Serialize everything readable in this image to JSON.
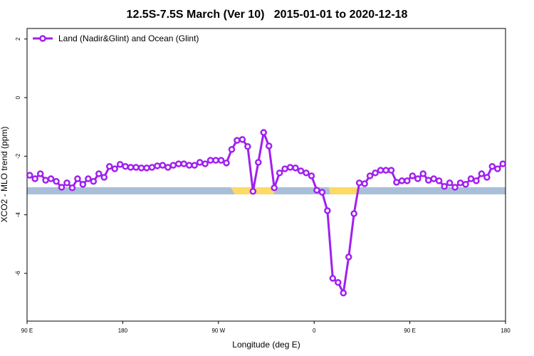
{
  "chart_data": {
    "type": "line",
    "title": "12.5S-7.5S March (Ver 10)   2015-01-01 to 2020-12-18",
    "x_label": "Longitude (deg E)",
    "y_label": "XCO2 - MLO trend (ppm)",
    "xlim": [
      90,
      540
    ],
    "xticks": [
      {
        "value": 90,
        "label": "90 E"
      },
      {
        "value": 180,
        "label": "180"
      },
      {
        "value": 270,
        "label": "90 W"
      },
      {
        "value": 360,
        "label": "0"
      },
      {
        "value": 450,
        "label": "90 E"
      },
      {
        "value": 540,
        "label": "180"
      }
    ],
    "ylim": [
      -7.63,
      2.36
    ],
    "yticks": [
      2,
      0,
      -2,
      -4,
      -6
    ],
    "legend": "top-left",
    "x": [
      92.5,
      97.5,
      102.5,
      107.5,
      112.5,
      117.5,
      122.5,
      127.5,
      132.5,
      137.5,
      142.5,
      147.5,
      152.5,
      157.5,
      162.5,
      167.5,
      172.5,
      177.5,
      182.5,
      187.5,
      192.5,
      197.5,
      202.5,
      207.5,
      212.5,
      217.5,
      222.5,
      227.5,
      232.5,
      237.5,
      242.5,
      247.5,
      252.5,
      257.5,
      262.5,
      267.5,
      272.5,
      277.5,
      282.5,
      287.5,
      292.5,
      297.5,
      302.5,
      307.5,
      312.5,
      317.5,
      322.5,
      327.5,
      332.5,
      337.5,
      342.5,
      347.5,
      352.5,
      357.5,
      362.5,
      367.5,
      372.5,
      377.5,
      382.5,
      387.5,
      392.5,
      397.5,
      402.5,
      407.5,
      412.5,
      417.5,
      422.5,
      427.5,
      432.5,
      437.5,
      442.5,
      447.5,
      452.5,
      457.5,
      462.5,
      467.5,
      472.5,
      477.5,
      482.5,
      487.5,
      492.5,
      497.5,
      502.5,
      507.5,
      512.5,
      517.5,
      522.5,
      527.5,
      532.5,
      537.5
    ],
    "series": [
      {
        "name": "Land (Nadir&Glint) and Ocean (Glint)",
        "color": "#a020f0",
        "values": [
          -2.65,
          -2.77,
          -2.6,
          -2.82,
          -2.77,
          -2.86,
          -3.06,
          -2.91,
          -3.08,
          -2.77,
          -2.96,
          -2.77,
          -2.86,
          -2.6,
          -2.72,
          -2.35,
          -2.43,
          -2.28,
          -2.35,
          -2.38,
          -2.38,
          -2.4,
          -2.4,
          -2.38,
          -2.33,
          -2.31,
          -2.38,
          -2.31,
          -2.26,
          -2.26,
          -2.31,
          -2.31,
          -2.21,
          -2.26,
          -2.14,
          -2.14,
          -2.14,
          -2.23,
          -1.77,
          -1.46,
          -1.43,
          -1.67,
          -3.2,
          -2.21,
          -1.19,
          -1.65,
          -3.08,
          -2.57,
          -2.43,
          -2.38,
          -2.4,
          -2.5,
          -2.57,
          -2.67,
          -3.16,
          -3.23,
          -3.86,
          -6.17,
          -6.31,
          -6.67,
          -5.44,
          -3.96,
          -2.91,
          -2.94,
          -2.67,
          -2.57,
          -2.48,
          -2.48,
          -2.48,
          -2.89,
          -2.84,
          -2.84,
          -2.67,
          -2.77,
          -2.6,
          -2.82,
          -2.77,
          -2.84,
          -3.03,
          -2.91,
          -3.06,
          -2.91,
          -2.96,
          -2.77,
          -2.84,
          -2.6,
          -2.72,
          -2.35,
          -2.43,
          -2.26
        ]
      }
    ]
  }
}
